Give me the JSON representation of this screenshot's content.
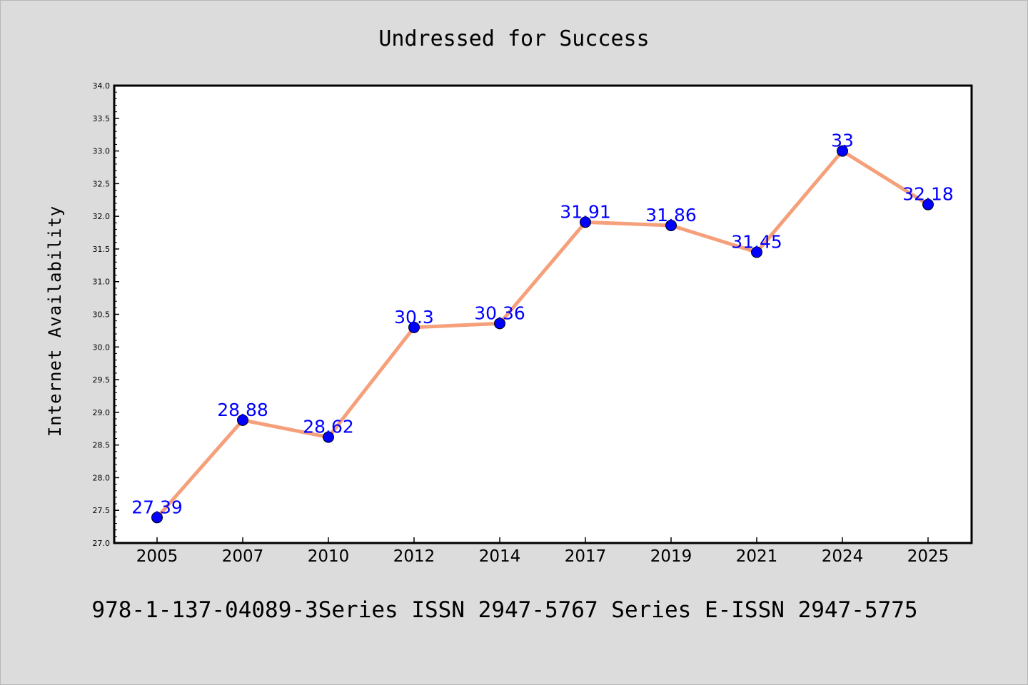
{
  "chart_data": {
    "type": "line",
    "title": "Undressed for Success",
    "xlabel": "",
    "ylabel": "Internet Availability",
    "categories": [
      "2005",
      "2007",
      "2010",
      "2012",
      "2014",
      "2017",
      "2019",
      "2021",
      "2024",
      "2025"
    ],
    "series": [
      {
        "values": [
          27.39,
          28.88,
          28.62,
          30.3,
          30.36,
          31.91,
          31.86,
          31.45,
          33,
          32.18
        ],
        "labels": [
          "27.39",
          "28.88",
          "28.62",
          "30.3",
          "30.36",
          "31.91",
          "31.86",
          "31.45",
          "33",
          "32.18"
        ]
      }
    ],
    "ylim": [
      27.0,
      34.0
    ],
    "yticks": [
      "27.0",
      "27.5",
      "28.0",
      "28.5",
      "29.0",
      "29.5",
      "30.0",
      "30.5",
      "31.0",
      "31.5",
      "32.0",
      "32.5",
      "33.0",
      "33.5",
      "34.0"
    ],
    "grid": false,
    "legend": "none"
  },
  "footer": "978-1-137-04089-3Series ISSN 2947-5767 Series E-ISSN 2947-5775",
  "colors": {
    "background": "#dcdcdc",
    "plot_background": "#ffffff",
    "line": "#f5a07a",
    "marker": "#0000ff",
    "label": "#0000ff"
  }
}
